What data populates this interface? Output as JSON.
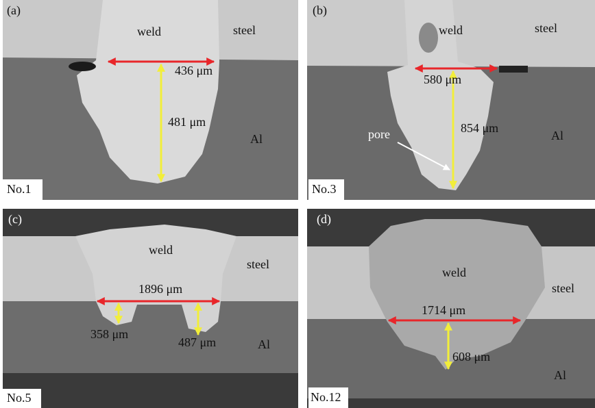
{
  "panels": [
    {
      "tag": "(a)",
      "sample": "No.1",
      "regions": [
        "weld",
        "steel",
        "Al"
      ],
      "measurements": [
        "436 μm",
        "481 μm"
      ]
    },
    {
      "tag": "(b)",
      "sample": "No.3",
      "regions": [
        "weld",
        "steel",
        "Al"
      ],
      "measurements": [
        "580 μm",
        "854 μm"
      ],
      "annotation": "pore"
    },
    {
      "tag": "(c)",
      "sample": "No.5",
      "regions": [
        "weld",
        "steel",
        "Al"
      ],
      "measurements": [
        "1896 μm",
        "358 μm",
        "487 μm"
      ]
    },
    {
      "tag": "(d)",
      "sample": "No.12",
      "regions": [
        "weld",
        "steel",
        "Al"
      ],
      "measurements": [
        "1714 μm",
        "608 μm"
      ]
    }
  ]
}
